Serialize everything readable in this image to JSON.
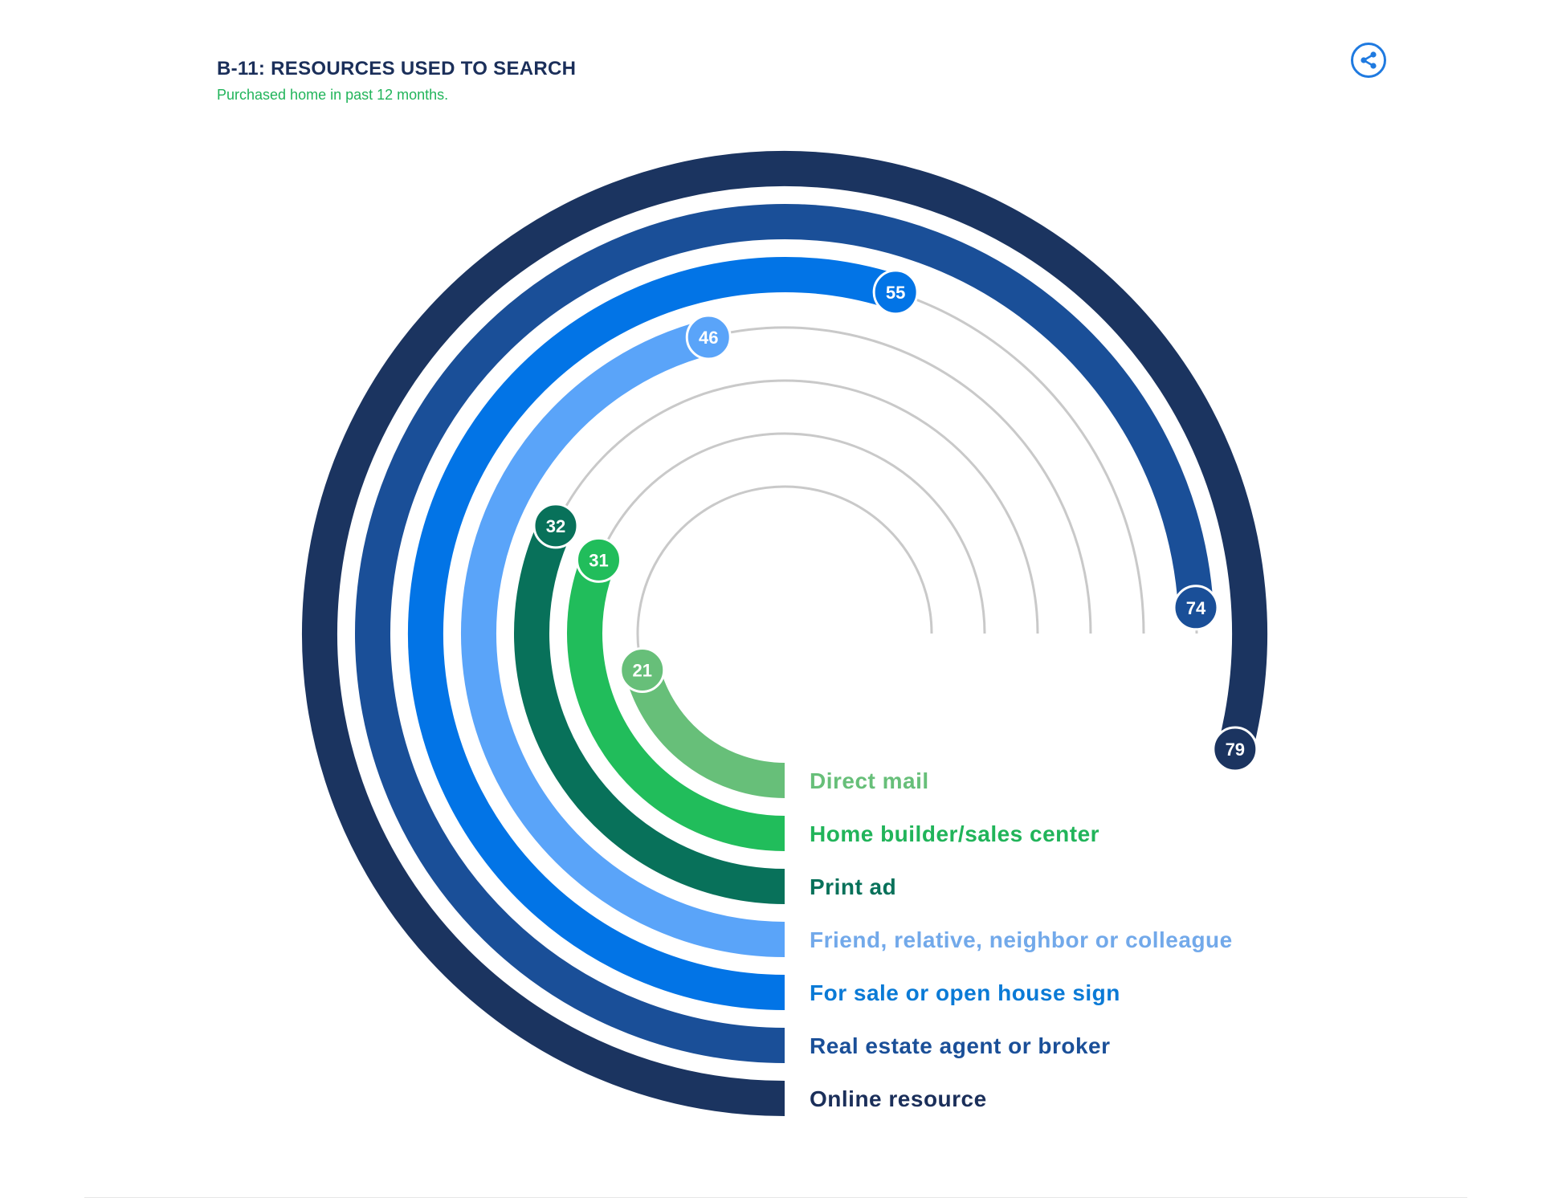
{
  "header": {
    "title": "B-11: RESOURCES USED TO SEARCH",
    "subtitle": "Purchased home in past 12 months."
  },
  "toolbar": {
    "share_icon": "share-icon"
  },
  "chart_data": {
    "type": "radial-bar",
    "title": "B-11: RESOURCES USED TO SEARCH",
    "subtitle": "Purchased home in past 12 months.",
    "max_value": 100,
    "unit": "%",
    "series": [
      {
        "label": "Online resource",
        "value": 79,
        "color": "#1b3460"
      },
      {
        "label": "Real estate agent or broker",
        "value": 74,
        "color": "#1a4f98"
      },
      {
        "label": "For sale or open house sign",
        "value": 55,
        "color": "#0274e6"
      },
      {
        "label": "Friend, relative, neighbor or colleague",
        "value": 46,
        "color": "#5aa4f9"
      },
      {
        "label": "Print ad",
        "value": 32,
        "color": "#08715a"
      },
      {
        "label": "Home builder/sales center",
        "value": 31,
        "color": "#21bd5b"
      },
      {
        "label": "Direct mail",
        "value": 21,
        "color": "#67bf79"
      }
    ],
    "legend_colors": {
      "Online resource": "#1b2f5a",
      "Real estate agent or broker": "#1a4f98",
      "For sale or open house sign": "#0a7ad6",
      "Friend, relative, neighbor or colleague": "#72a9ea",
      "Print ad": "#08715a",
      "Home builder/sales center": "#21b45a",
      "Direct mail": "#67bf79"
    },
    "track_color": "#c9c9c9",
    "grid": false,
    "legend_position": "bottom-right"
  }
}
